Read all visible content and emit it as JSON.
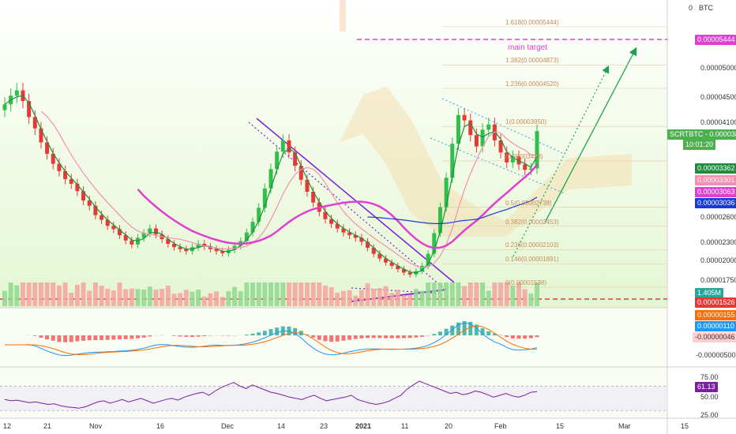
{
  "chart_data": {
    "type": "candlestick",
    "symbol": "SCRTBTC",
    "currency": "BTC",
    "price_axis": {
      "ticks": [
        "0.00005000",
        "0.00004500",
        "0.00004100",
        "0.00003300",
        "0.00003000",
        "0.00002600",
        "0.00002300",
        "0.00002000",
        "0.00001750"
      ],
      "range": [
        1.35e-05,
        5.75e-05
      ]
    },
    "x_ticks": [
      "12",
      "21",
      "Nov",
      "16",
      "Dec",
      "14",
      "23",
      "2021",
      "11",
      "20",
      "Feb",
      "15",
      "Mar",
      "15"
    ],
    "labels": {
      "main_target": {
        "text": "main target",
        "value": "0.00005444",
        "color": "#e040d0"
      },
      "last_price": {
        "text": "SCRTBTC",
        "value": "0.00003882",
        "countdown": "10:01:20",
        "color": "#4caf50"
      },
      "ema_green": {
        "value": "0.00003362",
        "color": "#1e8e3e"
      },
      "ema_pink_light": {
        "value": "0.00003301",
        "color": "#f48fb1"
      },
      "ema_magenta": {
        "value": "0.00003063",
        "color": "#e040d0"
      },
      "ema_blue": {
        "value": "0.00003036",
        "color": "#1a3ad8"
      },
      "volume": {
        "value": "1.405M",
        "color": "#26a69a"
      },
      "support": {
        "value": "0.00001526",
        "color": "#e53935"
      }
    },
    "fibonacci": [
      {
        "ratio": "1.618",
        "value": "0.00005444",
        "label": "1.618(0.00005444)"
      },
      {
        "ratio": "1.382",
        "value": "0.00004873",
        "label": "1.382(0.00004873)"
      },
      {
        "ratio": "1.236",
        "value": "0.00004520",
        "label": "1.236(0.00004520)"
      },
      {
        "ratio": "1",
        "value": "0.00003950",
        "label": "1(0.00003950)"
      },
      {
        "ratio": "0.786",
        "value": "0.00003433",
        "label": "(0.00003433)"
      },
      {
        "ratio": "0.5",
        "value": "0.00002738",
        "label": "0.5(0.00002738)"
      },
      {
        "ratio": "0.382",
        "value": "0.00002453",
        "label": "0.382(0.00002453)"
      },
      {
        "ratio": "0.236",
        "value": "0.00002103",
        "label": "0.236(0.00002103)"
      },
      {
        "ratio": "0.146",
        "value": "0.00001891",
        "label": "0.146(0.00001891)"
      },
      {
        "ratio": "0",
        "value": "0.00001538",
        "label": "0(0.00001538)"
      }
    ],
    "macd": {
      "labels": [
        {
          "value": "0.00000155",
          "color": "#ff6d00"
        },
        {
          "value": "0.00000110",
          "color": "#2196f3"
        },
        {
          "value": "-0.00000046",
          "color": "#ffcdd2",
          "text_color": "#333333"
        }
      ],
      "axis_tick": "-0.00000500"
    },
    "rsi": {
      "value": "61.13",
      "color": "#7b1fa2",
      "ticks": [
        "75.00",
        "50.00",
        "25.00"
      ],
      "range": [
        20,
        95
      ],
      "series": [
        48,
        46,
        47,
        45,
        43,
        44,
        42,
        40,
        41,
        38,
        36,
        35,
        34,
        36,
        40,
        44,
        46,
        42,
        45,
        48,
        44,
        47,
        50,
        46,
        42,
        45,
        48,
        50,
        47,
        52,
        55,
        58,
        60,
        55,
        62,
        68,
        72,
        76,
        70,
        66,
        72,
        68,
        64,
        60,
        58,
        55,
        52,
        50,
        48,
        52,
        55,
        50,
        46,
        48,
        50,
        52,
        55,
        48,
        45,
        42,
        40,
        42,
        45,
        50,
        55,
        65,
        72,
        78,
        74,
        70,
        66,
        62,
        58,
        60,
        56,
        58,
        62,
        60,
        56,
        52,
        55,
        58,
        54,
        52,
        55,
        60,
        61
      ]
    },
    "closes": [
      4.28e-05,
      4.41e-05,
      4.49e-05,
      4.33e-05,
      4.09e-05,
      3.92e-05,
      3.71e-05,
      3.54e-05,
      3.39e-05,
      3.28e-05,
      3.16e-05,
      3.09e-05,
      2.98e-05,
      2.84e-05,
      2.76e-05,
      2.62e-05,
      2.55e-05,
      2.46e-05,
      2.41e-05,
      2.32e-05,
      2.24e-05,
      2.18e-05,
      2.28e-05,
      2.35e-05,
      2.42e-05,
      2.33e-05,
      2.26e-05,
      2.19e-05,
      2.14e-05,
      2.11e-05,
      2.08e-05,
      2.14e-05,
      2.19e-05,
      2.15e-05,
      2.11e-05,
      2.08e-05,
      2.05e-05,
      2.1e-05,
      2.16e-05,
      2.23e-05,
      2.36e-05,
      2.52e-05,
      2.73e-05,
      3.02e-05,
      3.31e-05,
      3.57e-05,
      3.74e-05,
      3.56e-05,
      3.36e-05,
      3.15e-05,
      2.97e-05,
      2.81e-05,
      2.67e-05,
      2.56e-05,
      2.49e-05,
      2.42e-05,
      2.36e-05,
      2.32e-05,
      2.28e-05,
      2.22e-05,
      2.13e-05,
      2.04e-05,
      1.97e-05,
      1.91e-05,
      1.86e-05,
      1.81e-05,
      1.76e-05,
      1.73e-05,
      1.78e-05,
      1.86e-05,
      2.04e-05,
      2.35e-05,
      2.74e-05,
      3.18e-05,
      3.69e-05,
      4.12e-05,
      4.04e-05,
      3.82e-05,
      3.65e-05,
      3.9e-05,
      3.98e-05,
      3.74e-05,
      3.56e-05,
      3.41e-05,
      3.5e-05,
      3.38e-05,
      3.3e-05,
      3.32e-05,
      3.88e-05
    ]
  }
}
